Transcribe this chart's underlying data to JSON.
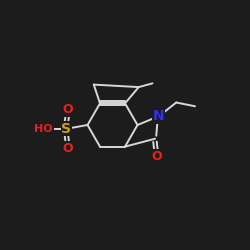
{
  "background_color": "#1c1c1c",
  "line_color": "#d8d8d8",
  "atom_colors": {
    "O": "#e82020",
    "S": "#c8a020",
    "N": "#3030ee",
    "C": "#d8d8d8"
  },
  "bond_lw": 1.4,
  "font_size": 9,
  "figsize": [
    2.5,
    2.5
  ],
  "dpi": 100
}
